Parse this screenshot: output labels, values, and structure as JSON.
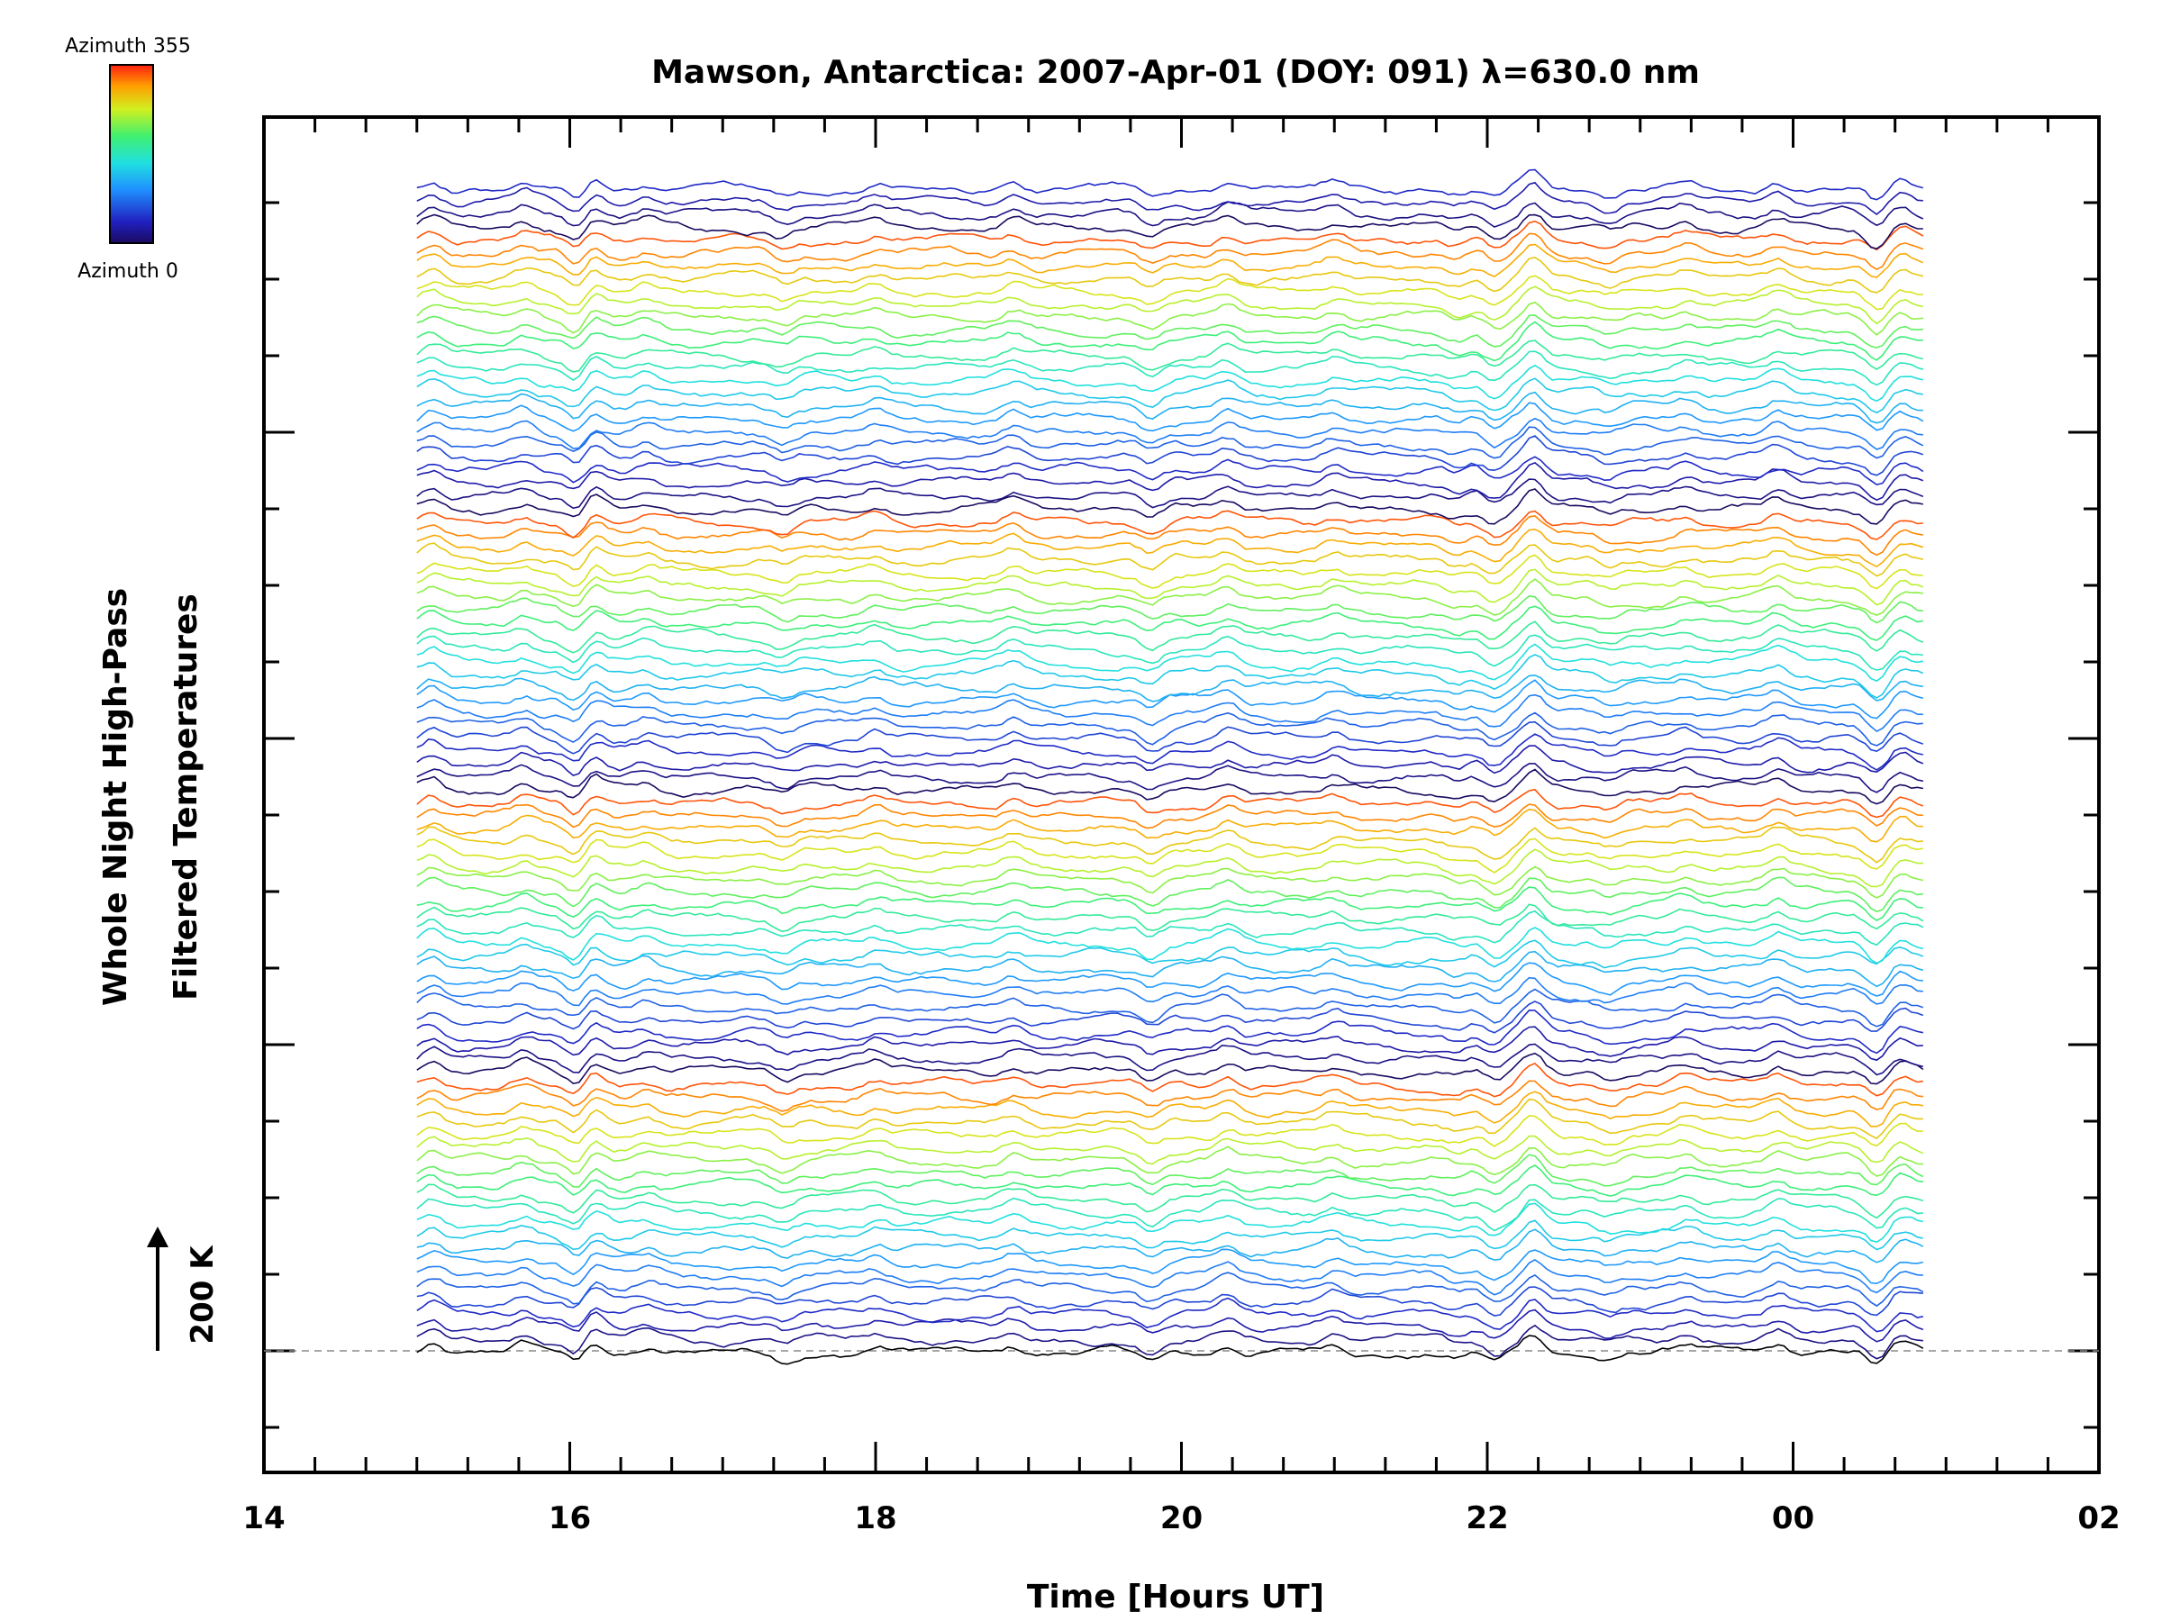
{
  "chart_data": {
    "type": "line",
    "title": "Mawson, Antarctica: 2007-Apr-01 (DOY: 091) λ=630.0 nm",
    "xlabel": "Time [Hours UT]",
    "ylabel_line1": "Whole Night High-Pass",
    "ylabel_line2": "Filtered Temperatures",
    "x_tick_labels": [
      "14",
      "16",
      "18",
      "20",
      "22",
      "00",
      "02"
    ],
    "xlim_hours": [
      14,
      26
    ],
    "data_range_hours": [
      15.0,
      24.85
    ],
    "scale_bar": {
      "value": 200,
      "label": "200 K"
    },
    "colorbar": {
      "top_label": "Azimuth 355",
      "bottom_label": "Azimuth 0",
      "min": 0,
      "max": 355
    },
    "series_count": 92,
    "baseline_dashed": true,
    "colors": {
      "frame": "#000000",
      "baseline": "#888888",
      "background": "#ffffff"
    }
  }
}
